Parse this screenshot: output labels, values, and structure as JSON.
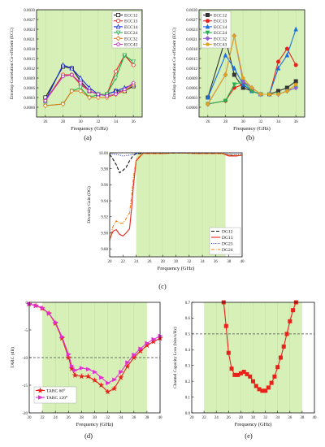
{
  "chart_data": [
    {
      "panel_label": "(a)",
      "type": "line",
      "xlabel": "Frequency (GHz)",
      "ylabel": "Envelop Correlation Co-efficient (ECC)",
      "xlim": [
        25,
        37
      ],
      "ylim": [
        -0.0003,
        0.003
      ],
      "xticks": [
        26,
        28,
        30,
        32,
        34,
        36
      ],
      "yticks": [
        0.0,
        0.0003,
        0.0006,
        0.0009,
        0.0012,
        0.0015,
        0.0018,
        0.0021,
        0.0024,
        0.0027,
        0.003
      ],
      "ytick_labels": [
        "0.0000",
        "0.0003",
        "0.0006",
        "0.0009",
        "0.0012",
        "0.0015",
        "0.0018",
        "0.0021",
        "0.0024",
        "0.0027",
        "0.0030"
      ],
      "grid": false,
      "legend_position": "top-right",
      "shaded_region": [
        25,
        37
      ],
      "x": [
        26,
        28,
        29,
        30,
        31,
        32,
        33,
        34,
        35,
        36
      ],
      "series": [
        {
          "name": "ECC12",
          "color": "#222222",
          "marker": "square-open",
          "values": [
            0.0003,
            0.00125,
            0.0012,
            0.0008,
            0.0005,
            0.0004,
            0.0004,
            0.0005,
            0.0005,
            0.00065
          ]
        },
        {
          "name": "ECC13",
          "color": "#e8221a",
          "marker": "circle-open",
          "values": [
            0.0002,
            0.001,
            0.001,
            0.0007,
            0.0005,
            0.0004,
            0.0004,
            0.0011,
            0.0016,
            0.0013
          ]
        },
        {
          "name": "ECC14",
          "color": "#1a2ee0",
          "marker": "triangle-open",
          "values": [
            0.0002,
            0.0013,
            0.0012,
            0.0009,
            0.0006,
            0.0004,
            0.0004,
            0.0005,
            0.0006,
            0.0007
          ]
        },
        {
          "name": "ECC24",
          "color": "#22b24c",
          "marker": "triangle-down-open",
          "values": [
            5e-05,
            0.0001,
            0.0005,
            0.0006,
            0.0003,
            0.0004,
            0.0004,
            0.0009,
            0.0016,
            0.0014
          ]
        },
        {
          "name": "ECC32",
          "color": "#e07a1a",
          "marker": "diamond-open",
          "values": [
            5e-05,
            0.0001,
            0.0005,
            0.0005,
            0.0003,
            0.0003,
            0.0003,
            0.0004,
            0.0005,
            0.0007
          ]
        },
        {
          "name": "ECC43",
          "color": "#c030c0",
          "marker": "pentagon-open",
          "values": [
            0.0002,
            0.00095,
            0.001,
            0.00075,
            0.0005,
            0.0004,
            0.00035,
            0.0004,
            0.00055,
            0.00075
          ]
        }
      ]
    },
    {
      "panel_label": "(b)",
      "type": "line",
      "xlabel": "Frequency (GHz)",
      "ylabel": "Envelop Correlation Co-efficient (ECC)",
      "xlim": [
        25,
        37
      ],
      "ylim": [
        -0.0003,
        0.003
      ],
      "xticks": [
        26,
        28,
        30,
        32,
        34,
        36
      ],
      "yticks": [
        0.0,
        0.0003,
        0.0006,
        0.0009,
        0.0012,
        0.0015,
        0.0018,
        0.0021,
        0.0024,
        0.0027,
        0.003
      ],
      "ytick_labels": [
        "0.0000",
        "0.0003",
        "0.0006",
        "0.0009",
        "0.0012",
        "0.0015",
        "0.0018",
        "0.0021",
        "0.0024",
        "0.0027",
        "0.0030"
      ],
      "grid": false,
      "legend_position": "top-left",
      "shaded_region": [
        25,
        37
      ],
      "x": [
        26,
        28,
        29,
        30,
        31,
        32,
        33,
        34,
        35,
        36
      ],
      "series": [
        {
          "name": "ECC12",
          "color": "#333333",
          "marker": "square",
          "values": [
            0.0003,
            0.0021,
            0.001,
            0.0006,
            0.0005,
            0.0004,
            0.0004,
            0.0005,
            0.0006,
            0.0008
          ]
        },
        {
          "name": "ECC13",
          "color": "#e8221a",
          "marker": "circle",
          "values": [
            0.0001,
            0.0002,
            0.0006,
            0.0007,
            0.0005,
            0.0004,
            0.0004,
            0.0014,
            0.0018,
            0.0013
          ]
        },
        {
          "name": "ECC14",
          "color": "#1a6ee0",
          "marker": "triangle",
          "values": [
            0.0003,
            0.0016,
            0.0012,
            0.0007,
            0.0005,
            0.0004,
            0.0004,
            0.0012,
            0.0016,
            0.0024
          ]
        },
        {
          "name": "ECC24",
          "color": "#22b24c",
          "marker": "triangle-down",
          "values": [
            0.0001,
            0.0002,
            0.0007,
            0.0008,
            0.0005,
            0.0004,
            0.0004,
            0.0004,
            0.0005,
            0.0006
          ]
        },
        {
          "name": "ECC32",
          "color": "#9060d0",
          "marker": "diamond",
          "values": [
            0.0001,
            0.001,
            0.0022,
            0.0008,
            0.0006,
            0.0004,
            0.0004,
            0.0004,
            0.0005,
            0.0006
          ]
        },
        {
          "name": "ECC43",
          "color": "#e0a020",
          "marker": "pentagon",
          "values": [
            0.0001,
            0.001,
            0.0022,
            0.0009,
            0.0006,
            0.0004,
            0.0004,
            0.0004,
            0.0005,
            0.0007
          ]
        }
      ]
    },
    {
      "panel_label": "(c)",
      "type": "line",
      "xlabel": "Frequency (GHz)",
      "ylabel": "Diversity Gain (DG)",
      "xlim": [
        20,
        40
      ],
      "ylim": [
        9.87,
        10.0
      ],
      "xticks": [
        20,
        22,
        24,
        26,
        28,
        30,
        32,
        34,
        36,
        38,
        40
      ],
      "yticks": [
        9.88,
        9.9,
        9.92,
        9.94,
        9.96,
        9.98,
        10.0
      ],
      "ytick_labels": [
        "9.88",
        "9.90",
        "9.92",
        "9.94",
        "9.96",
        "9.98",
        "10.00"
      ],
      "grid": false,
      "legend_position": "bottom-right",
      "shaded_region": [
        24,
        37.5
      ],
      "series": [
        {
          "name": "DG12",
          "color": "#111111",
          "style": "dashed",
          "x": [
            20,
            20.5,
            21,
            21.5,
            22,
            22.5,
            23,
            23.5,
            24,
            25,
            26,
            28,
            30,
            34,
            37,
            38,
            39,
            40
          ],
          "values": [
            9.998,
            9.992,
            9.985,
            9.975,
            9.978,
            9.982,
            9.99,
            9.996,
            9.999,
            9.999,
            9.999,
            9.999,
            10.0,
            9.999,
            9.999,
            9.997,
            9.996,
            9.997
          ]
        },
        {
          "name": "DG13",
          "color": "#e8221a",
          "style": "solid",
          "x": [
            20,
            20.5,
            21,
            21.5,
            22,
            22.5,
            23,
            23.3,
            23.6,
            24,
            25,
            26,
            28,
            30,
            34,
            37,
            38,
            39,
            40
          ],
          "values": [
            9.892,
            9.902,
            9.904,
            9.898,
            9.896,
            9.9,
            9.905,
            9.93,
            9.96,
            9.99,
            9.999,
            9.999,
            9.999,
            10.0,
            9.999,
            9.999,
            9.996,
            9.996,
            9.997
          ]
        },
        {
          "name": "DG23",
          "color": "#1a2ee0",
          "style": "dotted",
          "x": [
            20,
            21,
            22,
            23,
            24,
            25,
            26,
            28,
            30,
            34,
            37,
            38,
            39,
            40
          ],
          "values": [
            9.999,
            9.998,
            9.996,
            9.997,
            9.999,
            10.0,
            10.0,
            10.0,
            10.0,
            10.0,
            9.999,
            9.998,
            9.998,
            9.998
          ]
        },
        {
          "name": "DG24",
          "color": "#f08010",
          "style": "dashdot",
          "x": [
            20,
            20.5,
            21,
            21.5,
            22,
            22.5,
            23,
            23.3,
            23.6,
            24,
            25,
            26,
            28,
            30,
            34,
            37,
            38,
            39,
            40
          ],
          "values": [
            9.89,
            9.908,
            9.915,
            9.912,
            9.912,
            9.918,
            9.925,
            9.945,
            9.97,
            9.992,
            9.999,
            9.999,
            9.999,
            10.0,
            9.999,
            9.999,
            9.997,
            9.997,
            9.997
          ]
        }
      ]
    },
    {
      "panel_label": "(d)",
      "type": "line",
      "xlabel": "Frequency (GHz)",
      "ylabel": "TARC (dB)",
      "xlim": [
        20,
        40
      ],
      "ylim": [
        -20,
        0
      ],
      "xticks": [
        20,
        22,
        24,
        26,
        28,
        30,
        32,
        34,
        36,
        38,
        40
      ],
      "yticks": [
        -20,
        -15,
        -10,
        -5,
        0
      ],
      "ytick_labels": [
        "-20",
        "-15",
        "-10",
        "-5",
        "0"
      ],
      "reference_line": -10,
      "grid": false,
      "legend_position": "bottom-left",
      "shaded_region": [
        22,
        38
      ],
      "x": [
        20,
        21,
        22,
        23,
        24,
        25,
        26,
        26.5,
        27,
        28,
        29,
        30,
        31,
        32,
        33,
        34,
        35,
        36,
        37,
        38,
        39,
        40
      ],
      "series": [
        {
          "name": "TARC 60⁰",
          "color": "#e8221a",
          "marker": "star",
          "values": [
            -0.3,
            -0.6,
            -1.1,
            -2.0,
            -3.8,
            -6.5,
            -10.0,
            -12.0,
            -13.2,
            -13.4,
            -13.4,
            -14.1,
            -15.0,
            -16.2,
            -15.6,
            -13.6,
            -11.6,
            -10.0,
            -8.8,
            -7.8,
            -7.1,
            -6.5
          ]
        },
        {
          "name": "TARC 120⁰",
          "color": "#e030d0",
          "marker": "triangle-right",
          "values": [
            -0.3,
            -0.6,
            -1.0,
            -2.0,
            -3.6,
            -6.2,
            -9.4,
            -11.5,
            -12.3,
            -11.9,
            -12.1,
            -12.6,
            -13.6,
            -14.6,
            -14.0,
            -12.6,
            -10.9,
            -9.5,
            -8.4,
            -7.4,
            -6.7,
            -6.1
          ]
        }
      ]
    },
    {
      "panel_label": "(e)",
      "type": "line",
      "xlabel": "Frequency (GHz)",
      "ylabel": "Channel Capacity Loss (bits/s/Hz)",
      "xlim": [
        20,
        40
      ],
      "ylim": [
        0,
        0.7
      ],
      "xticks": [
        20,
        22,
        24,
        26,
        28,
        30,
        32,
        34,
        36,
        38,
        40
      ],
      "yticks": [
        0.0,
        0.1,
        0.2,
        0.3,
        0.4,
        0.5,
        0.6,
        0.7
      ],
      "ytick_labels": [
        "0.0",
        "0.1",
        "0.2",
        "0.3",
        "0.4",
        "0.5",
        "0.6",
        "0.7"
      ],
      "reference_line": 0.5,
      "grid": false,
      "shaded_region": [
        22,
        38
      ],
      "series": [
        {
          "name": "",
          "color": "#e8221a",
          "marker": "square",
          "x": [
            25.2,
            25.6,
            26,
            26.5,
            27,
            27.5,
            28,
            28.5,
            29,
            29.5,
            30,
            30.5,
            31,
            31.5,
            32,
            32.5,
            33,
            33.5,
            34,
            34.5,
            35,
            35.5,
            36,
            36.5,
            37
          ],
          "values": [
            0.7,
            0.55,
            0.38,
            0.28,
            0.24,
            0.24,
            0.25,
            0.26,
            0.245,
            0.23,
            0.2,
            0.17,
            0.15,
            0.14,
            0.14,
            0.16,
            0.19,
            0.23,
            0.29,
            0.35,
            0.42,
            0.5,
            0.58,
            0.65,
            0.7
          ]
        }
      ]
    }
  ]
}
